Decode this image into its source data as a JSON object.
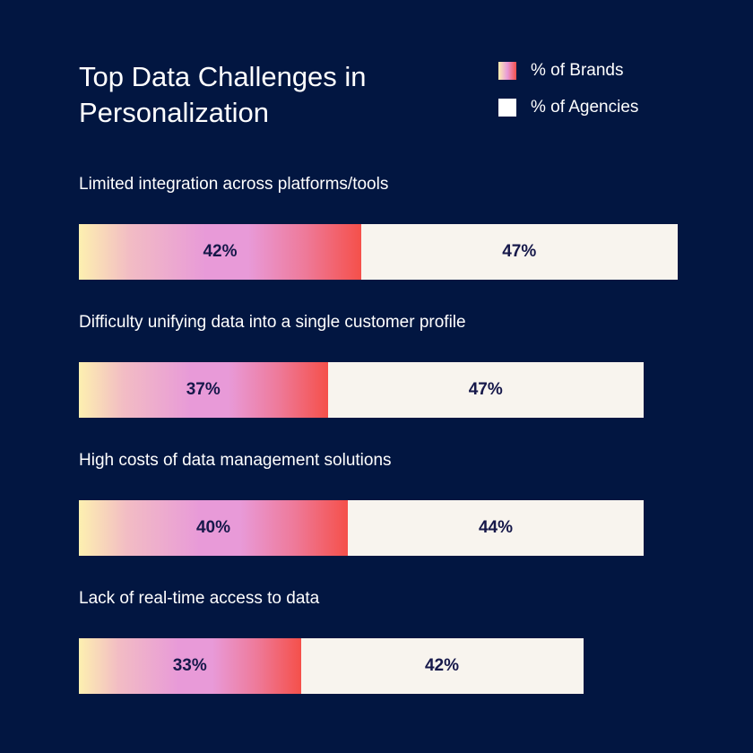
{
  "chart_data": {
    "type": "bar",
    "orientation": "horizontal-stacked",
    "title": "Top Data Challenges in Personalization",
    "categories": [
      "Limited integration across platforms/tools",
      "Difficulty unifying data into a single customer profile",
      "High costs of data management solutions",
      "Lack of real-time access to data"
    ],
    "series": [
      {
        "name": "% of Brands",
        "values": [
          42,
          37,
          40,
          33
        ],
        "labels": [
          "42%",
          "37%",
          "40%",
          "33%"
        ]
      },
      {
        "name": "% of Agencies",
        "values": [
          47,
          47,
          44,
          42
        ],
        "labels": [
          "47%",
          "47%",
          "44%",
          "42%"
        ]
      }
    ],
    "legend_placement": "top-right",
    "grid": false,
    "colors": {
      "background": "#021641",
      "brands_gradient": [
        "#fdf0b0",
        "#e89ad8",
        "#f5504a"
      ],
      "agencies": "#f8f4ee",
      "value_text": "#16184a"
    }
  }
}
